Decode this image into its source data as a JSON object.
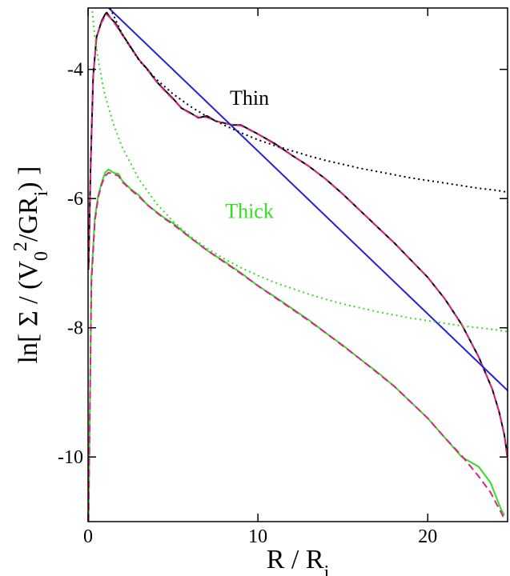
{
  "chart_data": {
    "type": "line",
    "xlabel": "R / R_i",
    "ylabel": "ln[ Σ / (V_0^2/GR_i) ]",
    "xlim": [
      0,
      24.7
    ],
    "ylim": [
      -11,
      -3.05
    ],
    "x_ticks": [
      0,
      10,
      20
    ],
    "y_ticks": [
      -4,
      -6,
      -8,
      -10
    ],
    "x_tick_labels": [
      "0",
      "10",
      "20"
    ],
    "y_tick_labels": [
      "-4",
      "-6",
      "-8",
      "-10"
    ],
    "grid": false,
    "annotations": [
      {
        "text": "Thin",
        "x": 9.5,
        "y": -4.55,
        "color": "#000000"
      },
      {
        "text": "Thick",
        "x": 9.5,
        "y": -6.3,
        "color": "#33dd22"
      }
    ],
    "series": [
      {
        "style": "solid",
        "color": "#000000",
        "x": [
          0.03,
          0.15,
          0.3,
          0.5,
          0.8,
          1.0,
          1.1,
          1.3,
          1.6,
          2.0,
          2.5,
          3.0,
          3.5,
          4.0,
          4.5,
          5.0,
          5.5,
          6.0,
          6.5,
          7.0,
          7.5,
          8.0,
          8.5,
          9.0,
          10.0,
          11.0,
          12.0,
          13.0,
          14.0,
          15.0,
          16.0,
          17.0,
          18.0,
          19.0,
          20.0,
          21.0,
          22.0,
          23.0,
          23.8,
          24.2,
          24.5,
          24.7
        ],
        "y": [
          -7.1,
          -5.5,
          -4.1,
          -3.5,
          -3.25,
          -3.15,
          -3.12,
          -3.2,
          -3.28,
          -3.45,
          -3.65,
          -3.85,
          -4.0,
          -4.18,
          -4.32,
          -4.45,
          -4.6,
          -4.67,
          -4.75,
          -4.72,
          -4.8,
          -4.83,
          -4.86,
          -4.86,
          -5.0,
          -5.15,
          -5.33,
          -5.5,
          -5.7,
          -5.93,
          -6.18,
          -6.43,
          -6.68,
          -6.95,
          -7.22,
          -7.55,
          -7.95,
          -8.45,
          -8.95,
          -9.3,
          -9.65,
          -10.0
        ]
      },
      {
        "style": "dashed",
        "color": "#dd2288",
        "x": [
          0.03,
          0.15,
          0.3,
          0.5,
          0.8,
          1.0,
          1.1,
          1.3,
          1.6,
          2.0,
          2.5,
          3.0,
          3.5,
          4.0,
          4.5,
          5.0,
          5.5,
          6.0,
          6.5,
          7.0,
          7.5,
          8.0,
          8.5,
          9.0,
          10.0,
          11.0,
          12.0,
          13.0,
          14.0,
          15.0,
          16.0,
          17.0,
          18.0,
          19.0,
          20.0,
          21.0,
          22.0,
          23.0,
          23.8,
          24.2,
          24.5,
          24.7
        ],
        "y": [
          -7.1,
          -5.5,
          -4.1,
          -3.5,
          -3.27,
          -3.18,
          -3.15,
          -3.2,
          -3.3,
          -3.46,
          -3.66,
          -3.85,
          -4.01,
          -4.18,
          -4.33,
          -4.46,
          -4.6,
          -4.68,
          -4.74,
          -4.74,
          -4.8,
          -4.83,
          -4.86,
          -4.87,
          -5.0,
          -5.16,
          -5.33,
          -5.5,
          -5.7,
          -5.93,
          -6.18,
          -6.43,
          -6.68,
          -6.95,
          -7.22,
          -7.55,
          -7.95,
          -8.45,
          -8.95,
          -9.3,
          -9.65,
          -10.05
        ]
      },
      {
        "style": "solid",
        "color": "#33dd22",
        "x": [
          0.03,
          0.2,
          0.4,
          0.6,
          0.8,
          1.0,
          1.2,
          1.5,
          1.8,
          2.0,
          2.5,
          3.0,
          3.5,
          4.0,
          4.5,
          5.0,
          6.0,
          7.0,
          8.0,
          9.0,
          10.0,
          11.0,
          12.0,
          13.0,
          14.0,
          15.0,
          16.0,
          17.0,
          18.0,
          19.0,
          20.0,
          21.0,
          22.0,
          23.0,
          23.7,
          24.0,
          24.3,
          24.5
        ],
        "y": [
          -11.0,
          -7.2,
          -6.3,
          -5.95,
          -5.75,
          -5.6,
          -5.55,
          -5.6,
          -5.62,
          -5.72,
          -5.85,
          -5.95,
          -6.1,
          -6.2,
          -6.3,
          -6.38,
          -6.6,
          -6.8,
          -6.97,
          -7.15,
          -7.35,
          -7.52,
          -7.7,
          -7.88,
          -8.08,
          -8.27,
          -8.48,
          -8.68,
          -8.9,
          -9.15,
          -9.4,
          -9.7,
          -10.0,
          -10.15,
          -10.4,
          -10.6,
          -10.8,
          -10.9
        ]
      },
      {
        "style": "dashed",
        "color": "#dd2288",
        "x": [
          0.03,
          0.2,
          0.4,
          0.6,
          0.8,
          1.0,
          1.2,
          1.5,
          1.8,
          2.0,
          2.5,
          3.0,
          3.5,
          4.0,
          4.5,
          5.0,
          6.0,
          7.0,
          8.0,
          9.0,
          10.0,
          11.0,
          12.0,
          13.0,
          14.0,
          15.0,
          16.0,
          17.0,
          18.0,
          19.0,
          20.0,
          21.0,
          22.0,
          23.0,
          23.7,
          24.0,
          24.3,
          24.5
        ],
        "y": [
          -11.0,
          -7.3,
          -6.35,
          -5.98,
          -5.78,
          -5.65,
          -5.6,
          -5.62,
          -5.65,
          -5.74,
          -5.86,
          -5.97,
          -6.1,
          -6.21,
          -6.31,
          -6.4,
          -6.6,
          -6.8,
          -6.98,
          -7.16,
          -7.35,
          -7.53,
          -7.71,
          -7.89,
          -8.08,
          -8.28,
          -8.48,
          -8.69,
          -8.9,
          -9.15,
          -9.4,
          -9.7,
          -9.98,
          -10.3,
          -10.55,
          -10.7,
          -10.85,
          -10.95
        ]
      },
      {
        "style": "solid",
        "color": "#2222dd",
        "x": [
          1.1,
          24.7
        ],
        "y": [
          -3.02,
          -8.97
        ]
      },
      {
        "style": "dotted",
        "color": "#000000",
        "x": [
          1.3,
          2,
          3,
          4,
          5,
          6,
          7,
          8,
          9,
          10,
          11,
          12,
          13,
          14,
          15,
          16,
          17,
          18,
          19,
          20,
          21,
          22,
          23,
          24,
          24.7
        ],
        "y": [
          -3.05,
          -3.45,
          -3.86,
          -4.15,
          -4.38,
          -4.57,
          -4.73,
          -4.86,
          -4.98,
          -5.09,
          -5.18,
          -5.26,
          -5.34,
          -5.41,
          -5.47,
          -5.53,
          -5.58,
          -5.63,
          -5.68,
          -5.72,
          -5.76,
          -5.8,
          -5.84,
          -5.87,
          -5.9
        ]
      },
      {
        "style": "dotted",
        "color": "#33dd22",
        "x": [
          0.25,
          0.4,
          0.6,
          0.8,
          1.0,
          1.5,
          2,
          3,
          4,
          5,
          6,
          7,
          8,
          9,
          10,
          11,
          12,
          13,
          14,
          15,
          16,
          17,
          18,
          19,
          20,
          21,
          22,
          23,
          24,
          24.7
        ],
        "y": [
          -3.1,
          -3.5,
          -3.85,
          -4.15,
          -4.4,
          -4.85,
          -5.2,
          -5.7,
          -6.07,
          -6.35,
          -6.58,
          -6.77,
          -6.93,
          -7.07,
          -7.19,
          -7.3,
          -7.39,
          -7.48,
          -7.56,
          -7.63,
          -7.69,
          -7.75,
          -7.8,
          -7.85,
          -7.89,
          -7.93,
          -7.97,
          -8.0,
          -8.03,
          -8.06
        ]
      }
    ]
  }
}
